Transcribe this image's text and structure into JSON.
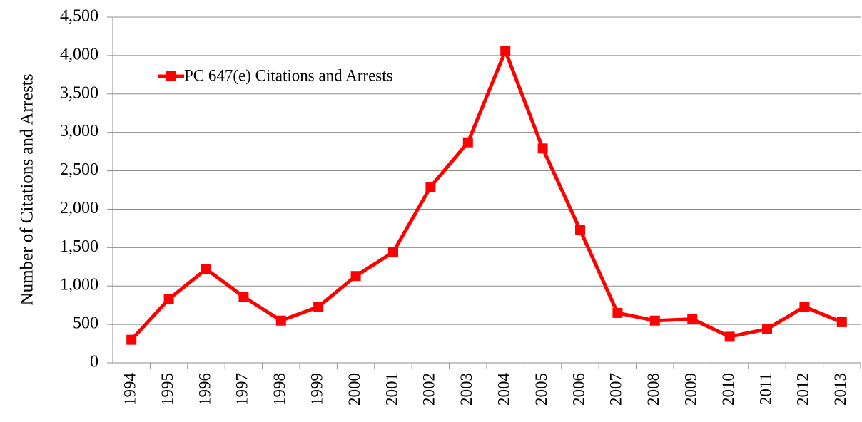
{
  "chart_data": {
    "type": "line",
    "y_label": "Number of Citations and Arrests",
    "categories": [
      "1994",
      "1995",
      "1996",
      "1997",
      "1998",
      "1999",
      "2000",
      "2001",
      "2002",
      "2003",
      "2004",
      "2005",
      "2006",
      "2007",
      "2008",
      "2009",
      "2010",
      "2011",
      "2012",
      "2013"
    ],
    "series": [
      {
        "name": "PC 647(e) Citations and Arrests",
        "color": "#ff0000",
        "values": [
          300,
          830,
          1220,
          860,
          550,
          730,
          1130,
          1440,
          2290,
          2870,
          4060,
          2790,
          1730,
          650,
          550,
          570,
          340,
          440,
          730,
          530
        ]
      }
    ],
    "ylim": [
      0,
      4500
    ],
    "yticks": [
      0,
      500,
      {
        "value": 1000,
        "label": "1,000"
      },
      {
        "value": 1500,
        "label": "1,500"
      },
      {
        "value": 2000,
        "label": "2,000"
      },
      {
        "value": 2500,
        "label": "2,500"
      },
      {
        "value": 3000,
        "label": "3,000"
      },
      {
        "value": 3500,
        "label": "3,500"
      },
      {
        "value": 4000,
        "label": "4,000"
      },
      {
        "value": 4500,
        "label": "4,500"
      }
    ],
    "grid": true,
    "legend": "upper left"
  }
}
